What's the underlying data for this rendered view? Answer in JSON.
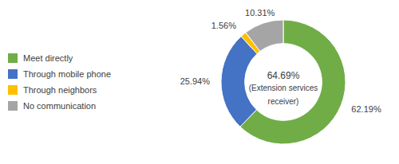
{
  "chart_data": {
    "type": "donut",
    "categories": [
      "Meet directly",
      "Through mobile phone",
      "Through neighbors",
      "No communication"
    ],
    "values": [
      62.19,
      25.94,
      1.56,
      10.31
    ],
    "colors": [
      "#70AD47",
      "#4472C4",
      "#FFC000",
      "#A5A5A5"
    ],
    "data_labels": true,
    "annotations": [
      "64.69%",
      "(Extension services",
      "receiver)"
    ],
    "legend": "left"
  }
}
